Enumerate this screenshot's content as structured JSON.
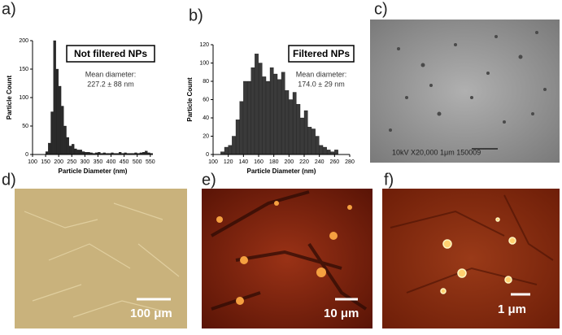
{
  "panel_labels": [
    "a)",
    "b)",
    "c)",
    "d)",
    "e)",
    "f)"
  ],
  "images": {
    "tem_caption": "10kV  X20,000  1μm  150009",
    "scale_d": "100 μm",
    "scale_e": "10 μm",
    "scale_f": "1 μm"
  },
  "chart_data": [
    {
      "type": "histogram",
      "x_label": "Particle Diameter (nm)",
      "y_label": "Particle Count",
      "annotations": [
        "Not filtered NPs",
        "Mean diameter:",
        "227.2 ± 88 nm"
      ],
      "bins": [
        150,
        160,
        170,
        180,
        190,
        200,
        210,
        220,
        230,
        240,
        250,
        260,
        270,
        280,
        290,
        300,
        310,
        320,
        330,
        340,
        350,
        360,
        370,
        380,
        390,
        400,
        410,
        420,
        430,
        440,
        450,
        460,
        470,
        480,
        490,
        500,
        510,
        520,
        530,
        540,
        550,
        560
      ],
      "values": [
        5,
        20,
        75,
        200,
        150,
        120,
        85,
        50,
        30,
        15,
        18,
        10,
        8,
        8,
        5,
        4,
        4,
        3,
        2,
        3,
        4,
        2,
        3,
        2,
        2,
        3,
        2,
        2,
        4,
        2,
        3,
        2,
        2,
        2,
        3,
        2,
        3,
        4,
        6,
        3,
        2
      ],
      "color": "#2a2a2a",
      "xlim": [
        100,
        560
      ],
      "xticks": [
        100,
        150,
        200,
        250,
        300,
        350,
        400,
        450,
        500,
        550
      ],
      "ylim": [
        0,
        200
      ],
      "yticks": [
        0,
        50,
        100,
        150,
        200
      ]
    },
    {
      "type": "histogram",
      "x_label": "Particle Diameter (nm)",
      "y_label": "Particle Count",
      "annotations": [
        "Filtered NPs",
        "Mean diameter:",
        "174.0 ± 29 nm"
      ],
      "bins": [
        110,
        115,
        120,
        125,
        130,
        135,
        140,
        145,
        150,
        155,
        160,
        165,
        170,
        175,
        180,
        185,
        190,
        195,
        200,
        205,
        210,
        215,
        220,
        225,
        230,
        235,
        240,
        245,
        250,
        255,
        260,
        265
      ],
      "values": [
        3,
        8,
        10,
        20,
        38,
        58,
        80,
        80,
        95,
        110,
        100,
        85,
        80,
        95,
        88,
        82,
        90,
        70,
        60,
        68,
        55,
        40,
        48,
        30,
        28,
        20,
        10,
        8,
        5,
        3,
        5
      ],
      "color": "#3a3a3a",
      "xlim": [
        100,
        280
      ],
      "xticks": [
        100,
        120,
        140,
        160,
        180,
        200,
        220,
        240,
        260,
        280
      ],
      "ylim": [
        0,
        120
      ],
      "yticks": [
        0,
        20,
        40,
        60,
        80,
        100,
        120
      ]
    }
  ]
}
